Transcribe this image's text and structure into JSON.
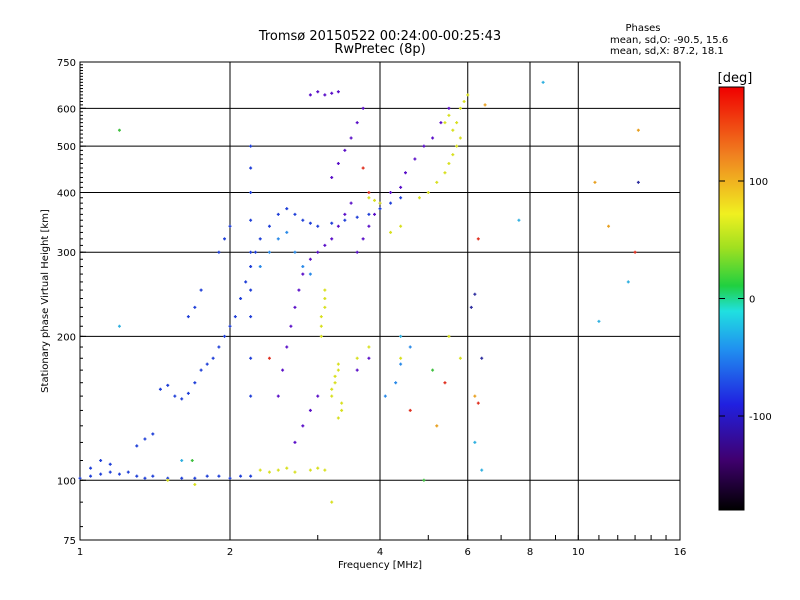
{
  "chart_data": {
    "type": "scatter",
    "title": "Tromsø 20150522 00:24:00-00:25:43",
    "subtitle": "RwPretec (8p)",
    "xlabel": "Frequency [MHz]",
    "ylabel": "Stationary phase Virtual Height [km]",
    "x_scale": "log",
    "y_scale": "log",
    "xlim": [
      1,
      16
    ],
    "ylim": [
      75,
      750
    ],
    "x_ticks": [
      1,
      2,
      4,
      6,
      8,
      10,
      16
    ],
    "y_ticks": [
      75,
      100,
      200,
      300,
      400,
      500,
      600,
      750
    ],
    "grid": true,
    "phase_box": {
      "title": "Phases",
      "line_o": "mean, sd,O: -90.5, 15.6",
      "line_x": "mean, sd,X:  87.2, 18.1"
    },
    "colorbar": {
      "label": "[deg]",
      "range": [
        -180,
        180
      ],
      "ticks": [
        100,
        0,
        -100
      ],
      "tick_labels": [
        "100",
        "0",
        "-100"
      ]
    },
    "series": [
      {
        "color": "#1f3fd8",
        "points": [
          [
            1.0,
            101
          ],
          [
            1.05,
            102
          ],
          [
            1.1,
            103
          ],
          [
            1.15,
            104
          ],
          [
            1.2,
            103
          ],
          [
            1.25,
            104
          ],
          [
            1.3,
            102
          ],
          [
            1.35,
            101
          ],
          [
            1.4,
            102
          ],
          [
            1.5,
            101
          ],
          [
            1.6,
            101
          ],
          [
            1.7,
            101
          ],
          [
            1.8,
            102
          ],
          [
            1.9,
            102
          ],
          [
            2.0,
            101
          ],
          [
            2.1,
            102
          ],
          [
            2.2,
            102
          ],
          [
            1.1,
            110
          ],
          [
            1.15,
            108
          ],
          [
            1.05,
            106
          ],
          [
            1.3,
            118
          ],
          [
            1.35,
            122
          ],
          [
            1.4,
            125
          ],
          [
            1.45,
            155
          ],
          [
            1.5,
            158
          ],
          [
            1.55,
            150
          ],
          [
            1.6,
            148
          ],
          [
            1.65,
            152
          ],
          [
            1.7,
            160
          ],
          [
            1.75,
            170
          ],
          [
            1.8,
            175
          ],
          [
            1.85,
            180
          ],
          [
            1.9,
            190
          ],
          [
            1.95,
            200
          ],
          [
            2.0,
            210
          ],
          [
            2.05,
            220
          ],
          [
            2.1,
            240
          ],
          [
            2.15,
            260
          ],
          [
            2.2,
            280
          ],
          [
            2.25,
            300
          ],
          [
            2.3,
            320
          ],
          [
            2.4,
            340
          ],
          [
            2.5,
            360
          ],
          [
            2.6,
            370
          ],
          [
            2.7,
            360
          ],
          [
            2.8,
            350
          ],
          [
            2.9,
            345
          ],
          [
            3.0,
            340
          ],
          [
            3.2,
            345
          ],
          [
            3.4,
            350
          ],
          [
            3.6,
            355
          ],
          [
            3.8,
            360
          ],
          [
            4.0,
            370
          ],
          [
            4.2,
            380
          ],
          [
            4.4,
            390
          ],
          [
            2.2,
            150
          ],
          [
            2.2,
            180
          ],
          [
            2.2,
            220
          ],
          [
            2.2,
            250
          ],
          [
            2.2,
            300
          ],
          [
            2.2,
            350
          ],
          [
            2.2,
            400
          ],
          [
            2.2,
            450
          ],
          [
            2.2,
            500
          ],
          [
            1.65,
            220
          ],
          [
            1.7,
            230
          ],
          [
            1.75,
            250
          ],
          [
            1.9,
            300
          ],
          [
            1.95,
            320
          ],
          [
            2.0,
            340
          ]
        ]
      },
      {
        "color": "#5a0fc8",
        "points": [
          [
            2.5,
            150
          ],
          [
            2.55,
            170
          ],
          [
            2.6,
            190
          ],
          [
            2.65,
            210
          ],
          [
            2.7,
            230
          ],
          [
            2.75,
            250
          ],
          [
            2.8,
            270
          ],
          [
            2.9,
            290
          ],
          [
            3.0,
            300
          ],
          [
            3.1,
            310
          ],
          [
            3.2,
            320
          ],
          [
            3.3,
            340
          ],
          [
            3.4,
            360
          ],
          [
            3.5,
            380
          ],
          [
            3.2,
            430
          ],
          [
            3.3,
            460
          ],
          [
            3.4,
            490
          ],
          [
            3.5,
            520
          ],
          [
            3.6,
            560
          ],
          [
            3.7,
            600
          ],
          [
            3.6,
            300
          ],
          [
            3.7,
            320
          ],
          [
            3.8,
            340
          ],
          [
            3.9,
            360
          ],
          [
            4.0,
            380
          ],
          [
            4.2,
            400
          ],
          [
            4.4,
            410
          ],
          [
            4.5,
            440
          ],
          [
            4.7,
            470
          ],
          [
            4.9,
            500
          ],
          [
            5.1,
            520
          ],
          [
            5.3,
            560
          ],
          [
            5.5,
            600
          ],
          [
            2.9,
            640
          ],
          [
            3.0,
            650
          ],
          [
            3.1,
            640
          ],
          [
            3.2,
            645
          ],
          [
            3.3,
            650
          ],
          [
            2.7,
            120
          ],
          [
            2.8,
            130
          ],
          [
            2.9,
            140
          ],
          [
            3.0,
            150
          ],
          [
            3.6,
            170
          ],
          [
            3.8,
            180
          ]
        ]
      },
      {
        "color": "#2a8ae8",
        "points": [
          [
            2.3,
            280
          ],
          [
            2.4,
            300
          ],
          [
            2.5,
            320
          ],
          [
            2.6,
            330
          ],
          [
            2.7,
            300
          ],
          [
            2.8,
            280
          ],
          [
            2.9,
            270
          ],
          [
            4.1,
            150
          ],
          [
            4.3,
            160
          ],
          [
            4.4,
            175
          ],
          [
            4.6,
            190
          ]
        ]
      },
      {
        "color": "#d8e020",
        "points": [
          [
            2.3,
            105
          ],
          [
            2.4,
            104
          ],
          [
            2.5,
            105
          ],
          [
            2.6,
            106
          ],
          [
            2.7,
            104
          ],
          [
            2.9,
            105
          ],
          [
            3.0,
            106
          ],
          [
            3.1,
            105
          ],
          [
            3.05,
            200
          ],
          [
            3.05,
            210
          ],
          [
            3.05,
            220
          ],
          [
            3.1,
            230
          ],
          [
            3.1,
            240
          ],
          [
            3.1,
            250
          ],
          [
            3.2,
            150
          ],
          [
            3.2,
            155
          ],
          [
            3.25,
            160
          ],
          [
            3.25,
            165
          ],
          [
            3.3,
            170
          ],
          [
            3.3,
            175
          ],
          [
            3.3,
            135
          ],
          [
            3.35,
            140
          ],
          [
            3.35,
            145
          ],
          [
            3.8,
            390
          ],
          [
            3.9,
            385
          ],
          [
            4.0,
            380
          ],
          [
            4.2,
            330
          ],
          [
            4.4,
            340
          ],
          [
            4.8,
            390
          ],
          [
            5.0,
            400
          ],
          [
            5.2,
            420
          ],
          [
            5.4,
            440
          ],
          [
            5.5,
            460
          ],
          [
            5.6,
            480
          ],
          [
            5.7,
            500
          ],
          [
            5.8,
            520
          ],
          [
            5.6,
            540
          ],
          [
            5.7,
            560
          ],
          [
            5.8,
            600
          ],
          [
            5.9,
            620
          ],
          [
            6.0,
            640
          ],
          [
            5.5,
            580
          ],
          [
            5.4,
            560
          ],
          [
            3.6,
            180
          ],
          [
            3.8,
            190
          ],
          [
            4.4,
            180
          ],
          [
            5.5,
            200
          ],
          [
            5.8,
            180
          ],
          [
            1.5,
            100
          ],
          [
            3.2,
            90
          ],
          [
            1.7,
            98
          ]
        ]
      },
      {
        "color": "#e03020",
        "points": [
          [
            6.3,
            320
          ],
          [
            6.3,
            145
          ],
          [
            4.6,
            140
          ],
          [
            5.4,
            160
          ],
          [
            2.4,
            180
          ],
          [
            3.8,
            400
          ],
          [
            3.7,
            450
          ],
          [
            13,
            300
          ]
        ]
      },
      {
        "color": "#e8a020",
        "points": [
          [
            5.2,
            130
          ],
          [
            6.2,
            150
          ],
          [
            13.2,
            540
          ],
          [
            10.8,
            420
          ],
          [
            11.5,
            340
          ],
          [
            6.5,
            610
          ]
        ]
      },
      {
        "color": "#30b0e0",
        "points": [
          [
            1.2,
            210
          ],
          [
            6.2,
            120
          ],
          [
            6.4,
            105
          ],
          [
            8.5,
            680
          ],
          [
            7.6,
            350
          ],
          [
            11,
            215
          ],
          [
            12.6,
            260
          ],
          [
            1.6,
            110
          ],
          [
            4.4,
            200
          ]
        ]
      },
      {
        "color": "#40c040",
        "points": [
          [
            1.2,
            540
          ],
          [
            1.68,
            110
          ],
          [
            5.1,
            170
          ],
          [
            4.9,
            100
          ]
        ]
      },
      {
        "color": "#3030a0",
        "points": [
          [
            6.1,
            230
          ],
          [
            6.2,
            245
          ],
          [
            13.2,
            420
          ],
          [
            6.4,
            180
          ]
        ]
      }
    ]
  }
}
